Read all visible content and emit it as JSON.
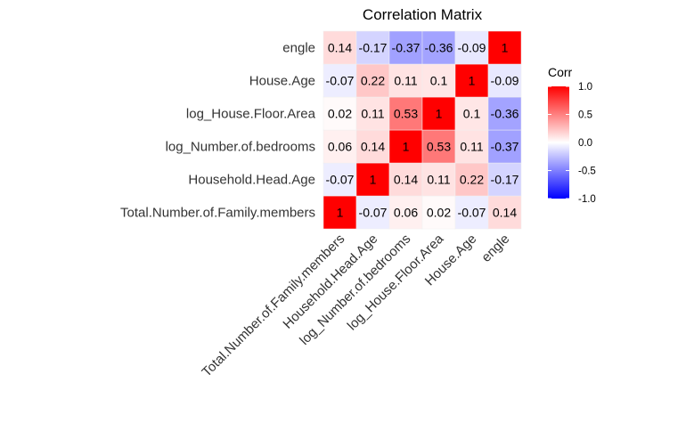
{
  "chart_data": {
    "type": "heatmap",
    "title": "Correlation Matrix",
    "variables": [
      "Total.Number.of.Family.members",
      "Household.Head.Age",
      "log_Number.of.bedrooms",
      "log_House.Floor.Area",
      "House.Age",
      "engle"
    ],
    "matrix": [
      [
        1,
        -0.07,
        0.06,
        0.02,
        -0.07,
        0.14
      ],
      [
        -0.07,
        1,
        0.14,
        0.11,
        0.22,
        -0.17
      ],
      [
        0.06,
        0.14,
        1,
        0.53,
        0.11,
        -0.37
      ],
      [
        0.02,
        0.11,
        0.53,
        1,
        0.1,
        -0.36
      ],
      [
        -0.07,
        0.22,
        0.11,
        0.1,
        1,
        -0.09
      ],
      [
        0.14,
        -0.17,
        -0.37,
        -0.36,
        -0.09,
        1
      ]
    ],
    "legend": {
      "title": "Corr",
      "ticks": [
        "1.0",
        "0.5",
        "0.0",
        "-0.5",
        "-1.0"
      ],
      "tick_values": [
        1.0,
        0.5,
        0.0,
        -0.5,
        -1.0
      ],
      "range": [
        -1,
        1
      ],
      "placement": "right"
    },
    "colors": {
      "low": "#0000ff",
      "mid": "#ffffff",
      "high": "#ff0000",
      "grid": "#ebebeb"
    }
  }
}
